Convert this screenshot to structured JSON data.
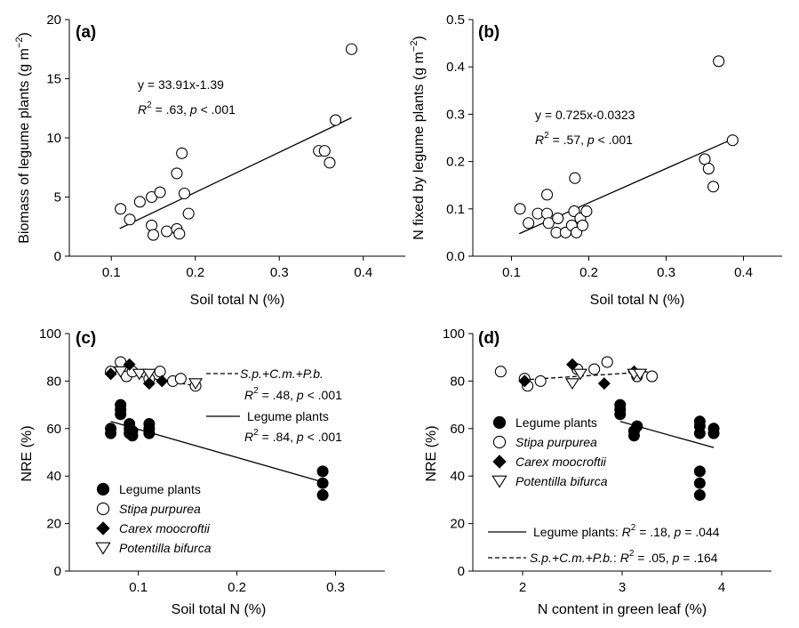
{
  "chart_data": [
    {
      "panel": "(a)",
      "type": "scatter",
      "xlabel": "Soil total N (%)",
      "ylabel_main": "Biomass of legume plants (g m",
      "ylabel_sup": "−2",
      "ylabel_close": ")",
      "xlim": [
        0.05,
        0.45
      ],
      "ylim": [
        0,
        20
      ],
      "xticks": [
        0.1,
        0.2,
        0.3,
        0.4
      ],
      "xtick_labels": [
        "0.1",
        "0.2",
        "0.3",
        "0.4"
      ],
      "yticks": [
        0,
        5,
        10,
        15,
        20
      ],
      "ytick_labels": [
        "0",
        "5",
        "10",
        "15",
        "20"
      ],
      "annotations": {
        "equation": "y = 33.91x-1.39",
        "r_label": "R",
        "r_sup": "2",
        "r_rest": " = .63,  ",
        "p_label": "p",
        "p_rest": " < .001"
      },
      "series": [
        {
          "marker": "open-circle",
          "points": [
            [
              0.111,
              4.0
            ],
            [
              0.122,
              3.1
            ],
            [
              0.134,
              4.6
            ],
            [
              0.148,
              5.0
            ],
            [
              0.148,
              2.6
            ],
            [
              0.15,
              1.8
            ],
            [
              0.158,
              5.4
            ],
            [
              0.166,
              2.1
            ],
            [
              0.178,
              7.0
            ],
            [
              0.178,
              2.3
            ],
            [
              0.181,
              1.9
            ],
            [
              0.184,
              8.7
            ],
            [
              0.187,
              5.3
            ],
            [
              0.192,
              3.6
            ],
            [
              0.347,
              8.9
            ],
            [
              0.354,
              8.9
            ],
            [
              0.36,
              7.9
            ],
            [
              0.367,
              11.5
            ],
            [
              0.386,
              17.5
            ]
          ]
        }
      ],
      "fits": [
        {
          "style": "solid",
          "x": [
            0.11,
            0.386
          ],
          "y": [
            2.34,
            11.7
          ]
        }
      ]
    },
    {
      "panel": "(b)",
      "type": "scatter",
      "xlabel": "Soil total N (%)",
      "ylabel_main": "N fixed by legume plants (g m",
      "ylabel_sup": "−2",
      "ylabel_close": ")",
      "xlim": [
        0.05,
        0.45
      ],
      "ylim": [
        0,
        0.5
      ],
      "xticks": [
        0.1,
        0.2,
        0.3,
        0.4
      ],
      "xtick_labels": [
        "0.1",
        "0.2",
        "0.3",
        "0.4"
      ],
      "yticks": [
        0,
        0.1,
        0.2,
        0.3,
        0.4,
        0.5
      ],
      "ytick_labels": [
        "0.0",
        "0.1",
        "0.2",
        "0.3",
        "0.4",
        "0.5"
      ],
      "annotations": {
        "equation": "y = 0.725x-0.0323",
        "r_label": "R",
        "r_sup": "2",
        "r_rest": " = .57,  ",
        "p_label": "p",
        "p_rest": " < .001"
      },
      "series": [
        {
          "marker": "open-circle",
          "points": [
            [
              0.111,
              0.1
            ],
            [
              0.122,
              0.07
            ],
            [
              0.134,
              0.09
            ],
            [
              0.146,
              0.13
            ],
            [
              0.146,
              0.09
            ],
            [
              0.148,
              0.07
            ],
            [
              0.158,
              0.05
            ],
            [
              0.16,
              0.08
            ],
            [
              0.17,
              0.05
            ],
            [
              0.178,
              0.065
            ],
            [
              0.181,
              0.095
            ],
            [
              0.182,
              0.165
            ],
            [
              0.184,
              0.05
            ],
            [
              0.189,
              0.08
            ],
            [
              0.192,
              0.065
            ],
            [
              0.197,
              0.095
            ],
            [
              0.35,
              0.205
            ],
            [
              0.355,
              0.185
            ],
            [
              0.361,
              0.147
            ],
            [
              0.368,
              0.412
            ],
            [
              0.386,
              0.245
            ]
          ]
        }
      ],
      "fits": [
        {
          "style": "solid",
          "x": [
            0.11,
            0.386
          ],
          "y": [
            0.0475,
            0.2475
          ]
        }
      ]
    },
    {
      "panel": "(c)",
      "type": "scatter",
      "xlabel": "Soil total N (%)",
      "ylabel": "NRE (%)",
      "xlim": [
        0.03,
        0.35
      ],
      "ylim": [
        0,
        100
      ],
      "xticks": [
        0.1,
        0.2,
        0.3
      ],
      "xtick_labels": [
        "0.1",
        "0.2",
        "0.3"
      ],
      "yticks": [
        0,
        20,
        40,
        60,
        80,
        100
      ],
      "ytick_labels": [
        "0",
        "20",
        "40",
        "60",
        "80",
        "100"
      ],
      "annotations": {
        "line1_dash_label": "S.p.+C.m.+P.b.",
        "line2_r": "R",
        "line2_sup": "2",
        "line2_rest": " = .48, ",
        "line2_p": "p",
        "line2_prest": " < .001",
        "line3_solid_label": "Legume plants",
        "line4_r": "R",
        "line4_sup": "2",
        "line4_rest": " = .84, ",
        "line4_p": "p",
        "line4_prest": " < .001"
      },
      "legend": [
        {
          "marker": "filled-circle",
          "label": "Legume plants",
          "italic": false
        },
        {
          "marker": "open-circle",
          "label": "Stipa purpurea",
          "italic": true
        },
        {
          "marker": "filled-diamond",
          "label": "Carex moocroftii",
          "italic": true
        },
        {
          "marker": "open-triangle-down",
          "label": "Potentilla bifurca",
          "italic": true
        }
      ],
      "series": [
        {
          "name": "Legume plants",
          "marker": "filled-circle",
          "points": [
            [
              0.072,
              58
            ],
            [
              0.072,
              60
            ],
            [
              0.082,
              66
            ],
            [
              0.082,
              68
            ],
            [
              0.082,
              70
            ],
            [
              0.091,
              58
            ],
            [
              0.091,
              60
            ],
            [
              0.091,
              62
            ],
            [
              0.094,
              57
            ],
            [
              0.094,
              59
            ],
            [
              0.111,
              58
            ],
            [
              0.111,
              60
            ],
            [
              0.111,
              62
            ],
            [
              0.287,
              42
            ],
            [
              0.287,
              37
            ],
            [
              0.287,
              32
            ]
          ]
        },
        {
          "name": "Stipa purpurea",
          "marker": "open-circle",
          "points": [
            [
              0.072,
              84
            ],
            [
              0.082,
              88
            ],
            [
              0.088,
              82
            ],
            [
              0.094,
              84
            ],
            [
              0.111,
              81
            ],
            [
              0.122,
              84
            ],
            [
              0.135,
              80
            ],
            [
              0.143,
              81
            ],
            [
              0.158,
              78
            ]
          ]
        },
        {
          "name": "Carex moocroftii",
          "marker": "filled-diamond",
          "points": [
            [
              0.072,
              83
            ],
            [
              0.091,
              87
            ],
            [
              0.111,
              79
            ],
            [
              0.124,
              80
            ]
          ]
        },
        {
          "name": "Potentilla bifurca",
          "marker": "open-triangle-down",
          "points": [
            [
              0.082,
              84
            ],
            [
              0.101,
              83
            ],
            [
              0.111,
              83
            ],
            [
              0.158,
              79
            ]
          ]
        }
      ],
      "fits": [
        {
          "style": "dashed",
          "x": [
            0.072,
            0.158
          ],
          "y": [
            84,
            78
          ]
        },
        {
          "style": "solid",
          "x": [
            0.072,
            0.287
          ],
          "y": [
            63,
            37.5
          ]
        }
      ]
    },
    {
      "panel": "(d)",
      "type": "scatter",
      "xlabel": "N content in green leaf (%)",
      "ylabel": "NRE (%)",
      "xlim": [
        1.5,
        4.5
      ],
      "ylim": [
        0,
        100
      ],
      "xticks": [
        2,
        3,
        4
      ],
      "xtick_labels": [
        "2",
        "3",
        "4"
      ],
      "yticks": [
        0,
        20,
        40,
        60,
        80,
        100
      ],
      "ytick_labels": [
        "0",
        "20",
        "40",
        "60",
        "80",
        "100"
      ],
      "annotations": {
        "solid_label": "Legume plants: ",
        "solid_r": "R",
        "solid_sup": "2",
        "solid_rest": " = .18, ",
        "solid_p": "p",
        "solid_prest": " = .044",
        "dash_label": "S.p.+C.m.+P.b.",
        "dash_colon": ": ",
        "dash_r": "R",
        "dash_sup": "2",
        "dash_rest": " = .05, ",
        "dash_p": "p",
        "dash_prest": " = .164"
      },
      "legend": [
        {
          "marker": "filled-circle",
          "label": "Legume plants",
          "italic": false
        },
        {
          "marker": "open-circle",
          "label": "Stipa purpurea",
          "italic": true
        },
        {
          "marker": "filled-diamond",
          "label": "Carex moocroftii",
          "italic": true
        },
        {
          "marker": "open-triangle-down",
          "label": "Potentilla bifurca",
          "italic": true
        }
      ],
      "series": [
        {
          "name": "Legume plants",
          "marker": "filled-circle",
          "points": [
            [
              2.98,
              66
            ],
            [
              2.98,
              68
            ],
            [
              2.98,
              70
            ],
            [
              3.12,
              57
            ],
            [
              3.12,
              59
            ],
            [
              3.15,
              61
            ],
            [
              3.78,
              58
            ],
            [
              3.78,
              61
            ],
            [
              3.78,
              63
            ],
            [
              3.78,
              42
            ],
            [
              3.78,
              37
            ],
            [
              3.78,
              32
            ],
            [
              3.92,
              58
            ],
            [
              3.92,
              60
            ]
          ]
        },
        {
          "name": "Stipa purpurea",
          "marker": "open-circle",
          "points": [
            [
              1.78,
              84
            ],
            [
              2.02,
              81
            ],
            [
              2.05,
              78
            ],
            [
              2.18,
              80
            ],
            [
              2.55,
              85
            ],
            [
              2.72,
              85
            ],
            [
              2.85,
              88
            ],
            [
              3.15,
              82
            ],
            [
              3.3,
              82
            ]
          ]
        },
        {
          "name": "Carex moocroftii",
          "marker": "filled-diamond",
          "points": [
            [
              2.02,
              80
            ],
            [
              2.5,
              87
            ],
            [
              2.82,
              79
            ],
            [
              3.12,
              84
            ]
          ]
        },
        {
          "name": "Potentilla bifurca",
          "marker": "open-triangle-down",
          "points": [
            [
              2.5,
              79
            ],
            [
              2.58,
              83
            ],
            [
              3.12,
              83
            ],
            [
              3.18,
              83
            ]
          ]
        }
      ],
      "fits": [
        {
          "style": "dashed",
          "x": [
            2.0,
            3.3
          ],
          "y": [
            80.5,
            84
          ]
        },
        {
          "style": "solid",
          "x": [
            2.98,
            3.92
          ],
          "y": [
            63,
            52
          ]
        }
      ]
    }
  ]
}
